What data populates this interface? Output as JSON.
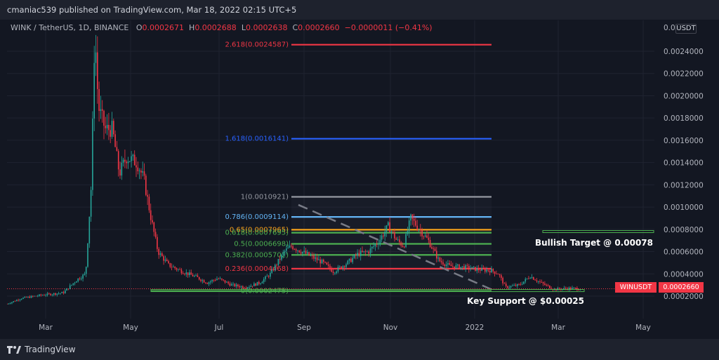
{
  "header": {
    "published": "cmaniac539 published on TradingView.com, Mar 18, 2022 02:15 UTC+5"
  },
  "legend": {
    "symbol": "WINK / TetherUS, 1D, BINANCE",
    "o_label": "O",
    "o_value": "0.0002671",
    "h_label": "H",
    "h_value": "0.0002688",
    "l_label": "L",
    "l_value": "0.0002638",
    "c_label": "C",
    "c_value": "0.0002660",
    "change": "−0.0000011 (−0.41%)"
  },
  "price_axis": {
    "currency": "USDT",
    "ticks": [
      "0.0",
      "0.0024000",
      "0.0022000",
      "0.0020000",
      "0.0018000",
      "0.0016000",
      "0.0014000",
      "0.0012000",
      "0.0010000",
      "0.0008000",
      "0.0006000",
      "0.0004000",
      "0.0002000"
    ],
    "current_symbol_tag": "WINUSDT",
    "current_price_tag": "0.0002660"
  },
  "time_axis": {
    "ticks": [
      "Mar",
      "May",
      "Jul",
      "Sep",
      "Nov",
      "2022",
      "Mar",
      "May"
    ]
  },
  "footer": {
    "brand": "TradingView"
  },
  "colors": {
    "up": "#26a69a",
    "down": "#f23645",
    "bg": "#131722",
    "fib_red": "#f23645",
    "fib_blue": "#2962ff",
    "fib_grey": "#9598a1",
    "fib_lightblue": "#64b5f6",
    "fib_orange": "#f7a21b",
    "fib_green": "#4caf50"
  },
  "chart_data": {
    "type": "candlestick",
    "symbol": "WINK / TetherUS",
    "interval": "1D",
    "ylim": [
      0.00012,
      0.0026
    ],
    "fibonacci": [
      {
        "ratio": "2.618",
        "price": "0.0024587",
        "label": "2.618(0.0024587)"
      },
      {
        "ratio": "1.618",
        "price": "0.0016141",
        "label": "1.618(0.0016141)"
      },
      {
        "ratio": "1",
        "price": "0.0010921",
        "label": "1(0.0010921)"
      },
      {
        "ratio": "0.786",
        "price": "0.0009114",
        "label": "0.786(0.0009114)"
      },
      {
        "ratio": "0.65",
        "price": "0.0007965",
        "label": "0.65(0.0007965)"
      },
      {
        "ratio": "0.618",
        "price": "0.0007695",
        "label": "0.618(0.0007695)"
      },
      {
        "ratio": "0.5",
        "price": "0.0006698",
        "label": "0.5(0.0006698)"
      },
      {
        "ratio": "0.382",
        "price": "0.0005702",
        "label": "0.382(0.0005702)"
      },
      {
        "ratio": "0.236",
        "price": "0.0004468",
        "label": "0.236(0.0004468)"
      },
      {
        "ratio": "0",
        "price": "0.0002475",
        "label": "0(0.0002475)"
      }
    ],
    "annotations": [
      {
        "text": "Bullish Target @ 0.00078",
        "price": 0.00078
      },
      {
        "text": "Key Support @ $0.00025",
        "price": 0.00025
      }
    ],
    "last_price": 0.000266
  }
}
